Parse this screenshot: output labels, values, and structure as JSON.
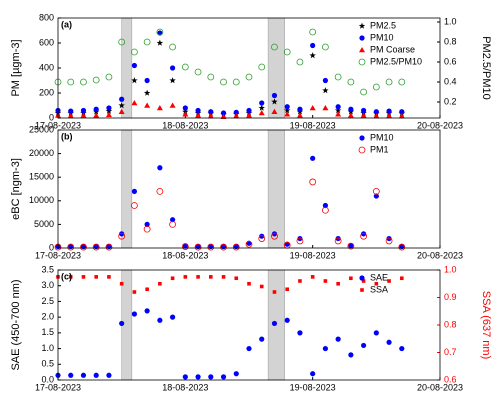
{
  "chart_data": [
    {
      "type": "scatter",
      "panel_label": "(a)",
      "ylabel": "PM [µgm-3]",
      "y2label": "PM2.5/PM10",
      "x": [
        0,
        0.1,
        0.2,
        0.3,
        0.4,
        0.5,
        0.6,
        0.7,
        0.8,
        0.9,
        1.0,
        1.1,
        1.2,
        1.3,
        1.4,
        1.5,
        1.6,
        1.7,
        1.8,
        1.9,
        2.0,
        2.1,
        2.2,
        2.3,
        2.4,
        2.5,
        2.6,
        2.7
      ],
      "xlim": [
        0,
        3
      ],
      "xticks": [
        {
          "value": 0,
          "label": "17-08-2023"
        },
        {
          "value": 1,
          "label": "18-08-2023"
        },
        {
          "value": 2,
          "label": "19-08-2023"
        },
        {
          "value": 3,
          "label": "20-08-2023"
        }
      ],
      "ylim": [
        0,
        800
      ],
      "yticks": [
        0,
        200,
        400,
        600,
        800
      ],
      "y2lim": [
        0.04,
        1.04
      ],
      "y2ticks": [
        {
          "value": 0.2,
          "label": "0.2"
        },
        {
          "value": 0.4,
          "label": "0.4"
        },
        {
          "value": 0.6,
          "label": "0.6"
        },
        {
          "value": 0.8,
          "label": "0.8"
        },
        {
          "value": 1.0,
          "label": "1.0"
        }
      ],
      "highlight_spans": [
        [
          0.5,
          0.58
        ],
        [
          1.65,
          1.78
        ]
      ],
      "legend": "upper right",
      "series": [
        {
          "name": "PM2.5",
          "color": "#000000",
          "marker": "star",
          "values": [
            40,
            38,
            40,
            50,
            55,
            100,
            300,
            200,
            600,
            300,
            50,
            40,
            35,
            30,
            30,
            40,
            80,
            130,
            60,
            50,
            500,
            220,
            60,
            50,
            40,
            35,
            38,
            35
          ]
        },
        {
          "name": "PM10",
          "color": "#0000ff",
          "marker": "circle",
          "values": [
            60,
            55,
            60,
            70,
            80,
            150,
            420,
            300,
            680,
            400,
            80,
            60,
            50,
            40,
            45,
            60,
            120,
            180,
            90,
            70,
            580,
            300,
            90,
            70,
            60,
            50,
            55,
            50
          ]
        },
        {
          "name": "PM Coarse",
          "color": "#ff0000",
          "marker": "triangle",
          "values": [
            20,
            17,
            20,
            20,
            25,
            50,
            120,
            100,
            80,
            100,
            30,
            20,
            15,
            10,
            15,
            20,
            40,
            50,
            30,
            20,
            80,
            80,
            30,
            20,
            20,
            15,
            17,
            15
          ]
        },
        {
          "name": "PM2.5/PM10",
          "color": "#2ca02c",
          "marker": "open-circle",
          "axis": "y2",
          "values": [
            0.4,
            0.4,
            0.4,
            0.42,
            0.45,
            0.8,
            0.7,
            0.8,
            0.9,
            0.75,
            0.55,
            0.5,
            0.45,
            0.4,
            0.4,
            0.45,
            0.55,
            0.75,
            0.7,
            0.6,
            0.9,
            0.75,
            0.45,
            0.4,
            0.3,
            0.35,
            0.4,
            0.4
          ]
        }
      ]
    },
    {
      "type": "scatter",
      "panel_label": "(b)",
      "ylabel": "eBC [ngm-3]",
      "x": [
        0,
        0.1,
        0.2,
        0.3,
        0.4,
        0.5,
        0.6,
        0.7,
        0.8,
        0.9,
        1.0,
        1.1,
        1.2,
        1.3,
        1.4,
        1.5,
        1.6,
        1.7,
        1.8,
        1.9,
        2.0,
        2.1,
        2.2,
        2.3,
        2.4,
        2.5,
        2.6,
        2.7
      ],
      "xlim": [
        0,
        3
      ],
      "xticks": [
        {
          "value": 0,
          "label": "17-08-2023"
        },
        {
          "value": 1,
          "label": "18-08-2023"
        },
        {
          "value": 2,
          "label": "19-08-2023"
        },
        {
          "value": 3,
          "label": "20-08-2023"
        }
      ],
      "ylim": [
        0,
        25000
      ],
      "yticks": [
        0,
        5000,
        10000,
        15000,
        20000,
        25000
      ],
      "highlight_spans": [
        [
          0.5,
          0.58
        ],
        [
          1.65,
          1.78
        ]
      ],
      "legend": "upper right",
      "series": [
        {
          "name": "PM10",
          "color": "#0000ff",
          "marker": "circle",
          "values": [
            300,
            300,
            300,
            300,
            300,
            3000,
            12000,
            5000,
            17000,
            6000,
            400,
            300,
            300,
            300,
            300,
            1000,
            2500,
            3000,
            800,
            2000,
            19000,
            9000,
            2000,
            500,
            3000,
            11000,
            2000,
            300
          ]
        },
        {
          "name": "PM1",
          "color": "#ff0000",
          "marker": "open-circle",
          "values": [
            200,
            200,
            200,
            200,
            200,
            2500,
            9000,
            4000,
            12000,
            5000,
            300,
            200,
            200,
            200,
            200,
            800,
            2000,
            2500,
            600,
            1500,
            14000,
            8000,
            1500,
            400,
            2500,
            12000,
            1500,
            200
          ]
        }
      ]
    },
    {
      "type": "scatter",
      "panel_label": "(c)",
      "ylabel": "SAE (450-700 nm)",
      "y2label": "SSA (637 nm)",
      "y2_color": "#ff0000",
      "x": [
        0,
        0.1,
        0.2,
        0.3,
        0.4,
        0.5,
        0.6,
        0.7,
        0.8,
        0.9,
        1.0,
        1.1,
        1.2,
        1.3,
        1.4,
        1.5,
        1.6,
        1.7,
        1.8,
        1.9,
        2.0,
        2.1,
        2.2,
        2.3,
        2.4,
        2.5,
        2.6,
        2.7
      ],
      "xlim": [
        0,
        3
      ],
      "xticks": [
        {
          "value": 0,
          "label": "17-08-2023"
        },
        {
          "value": 1,
          "label": "18-08-2023"
        },
        {
          "value": 2,
          "label": "19-08-2023"
        },
        {
          "value": 3,
          "label": "20-08-2023"
        }
      ],
      "ylim": [
        0,
        3.5
      ],
      "yticks": [
        {
          "value": 0,
          "label": "0.0"
        },
        {
          "value": 0.5,
          "label": "0.5"
        },
        {
          "value": 1,
          "label": "1.0"
        },
        {
          "value": 1.5,
          "label": "1.5"
        },
        {
          "value": 2,
          "label": "2.0"
        },
        {
          "value": 2.5,
          "label": "2.5"
        },
        {
          "value": 3,
          "label": "3.0"
        },
        {
          "value": 3.5,
          "label": "3.5"
        }
      ],
      "y2lim": [
        0.6,
        1.0
      ],
      "y2ticks": [
        {
          "value": 0.6,
          "label": "0.6"
        },
        {
          "value": 0.7,
          "label": "0.7"
        },
        {
          "value": 0.8,
          "label": "0.8"
        },
        {
          "value": 0.9,
          "label": "0.9"
        },
        {
          "value": 1.0,
          "label": "1.0"
        }
      ],
      "highlight_spans": [
        [
          0.5,
          0.58
        ],
        [
          1.65,
          1.78
        ]
      ],
      "legend": "upper right",
      "series": [
        {
          "name": "SAE",
          "color": "#0000ff",
          "marker": "circle",
          "values": [
            0.15,
            0.15,
            0.15,
            0.15,
            0.15,
            1.8,
            2.1,
            2.2,
            1.9,
            2.0,
            0.1,
            0.1,
            0.1,
            0.1,
            0.2,
            1.0,
            1.3,
            1.8,
            1.9,
            1.5,
            0.2,
            1.0,
            1.3,
            0.8,
            1.1,
            1.5,
            1.2,
            1.0
          ]
        },
        {
          "name": "SSA",
          "color": "#ff0000",
          "marker": "square",
          "axis": "y2",
          "values": [
            0.975,
            0.975,
            0.975,
            0.975,
            0.975,
            0.95,
            0.92,
            0.93,
            0.95,
            0.97,
            0.975,
            0.975,
            0.975,
            0.975,
            0.97,
            0.95,
            0.94,
            0.92,
            0.93,
            0.96,
            0.975,
            0.96,
            0.95,
            0.97,
            0.96,
            0.95,
            0.96,
            0.97
          ]
        }
      ]
    }
  ]
}
